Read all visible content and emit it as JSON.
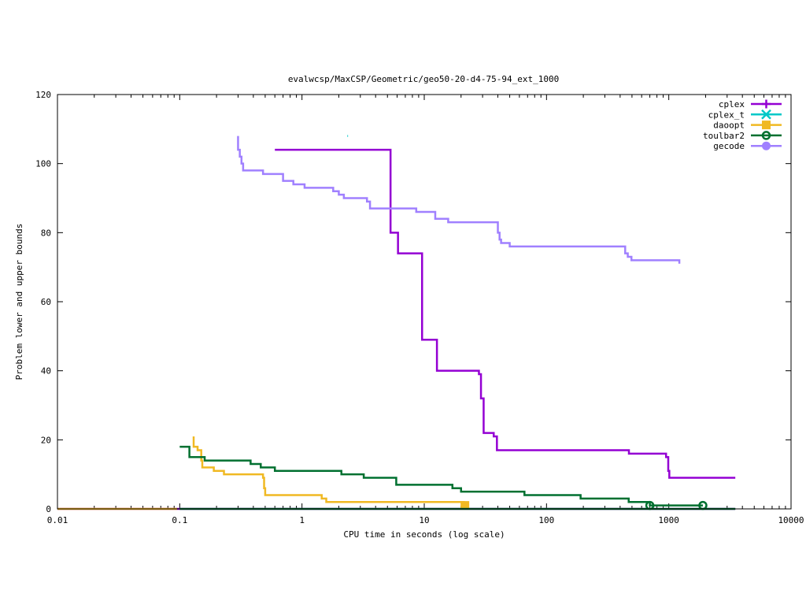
{
  "chart_data": {
    "type": "line",
    "title": "evalwcsp/MaxCSP/Geometric/geo50-20-d4-75-94_ext_1000",
    "xlabel": "CPU time in seconds (log scale)",
    "ylabel": "Problem lower and upper bounds",
    "xscale": "log",
    "xlim": [
      0.01,
      10000
    ],
    "ylim": [
      0,
      120
    ],
    "x_ticks": [
      0.01,
      0.1,
      1,
      10,
      100,
      1000,
      10000
    ],
    "x_tick_labels": [
      "0.01",
      "0.1",
      "1",
      "10",
      "100",
      "1000",
      "10000"
    ],
    "y_ticks": [
      0,
      20,
      40,
      60,
      80,
      100,
      120
    ],
    "y_tick_labels": [
      "0",
      "20",
      "40",
      "60",
      "80",
      "100",
      "120"
    ],
    "legend_position": "top-right",
    "series": [
      {
        "name": "cplex",
        "color": "#9400d3",
        "marker": "plus",
        "lines": [
          [
            [
              0.6,
              104
            ],
            [
              5.3,
              104
            ],
            [
              5.3,
              80
            ],
            [
              6.1,
              80
            ],
            [
              6.1,
              74
            ],
            [
              9.6,
              74
            ],
            [
              9.6,
              49
            ],
            [
              12.7,
              49
            ],
            [
              12.7,
              40
            ],
            [
              28.0,
              40
            ],
            [
              28.0,
              39
            ],
            [
              29.1,
              39
            ],
            [
              29.1,
              32
            ],
            [
              30.6,
              32
            ],
            [
              30.6,
              22
            ],
            [
              37.0,
              22
            ],
            [
              37.0,
              21
            ],
            [
              39.3,
              21
            ],
            [
              39.3,
              17
            ],
            [
              472,
              17
            ],
            [
              472,
              16
            ],
            [
              950,
              16
            ],
            [
              950,
              15
            ],
            [
              990,
              15
            ],
            [
              990,
              11
            ],
            [
              1010,
              11
            ],
            [
              1010,
              9
            ],
            [
              3500,
              9
            ]
          ],
          [
            [
              0.01,
              0
            ],
            [
              3500,
              0
            ]
          ]
        ],
        "markers": []
      },
      {
        "name": "cplex_t",
        "color": "#00c8c8",
        "marker": "x",
        "lines": [
          [
            [
              2.35,
              108
            ],
            [
              2.38,
              108
            ]
          ]
        ],
        "markers": []
      },
      {
        "name": "daoopt",
        "color": "#f0b923",
        "marker": "square",
        "lines": [
          [
            [
              0.13,
              21
            ],
            [
              0.13,
              18
            ],
            [
              0.14,
              18
            ],
            [
              0.14,
              17
            ],
            [
              0.15,
              17
            ],
            [
              0.15,
              14
            ],
            [
              0.153,
              14
            ],
            [
              0.153,
              12
            ],
            [
              0.19,
              12
            ],
            [
              0.19,
              11
            ],
            [
              0.23,
              11
            ],
            [
              0.23,
              10
            ],
            [
              0.48,
              10
            ],
            [
              0.48,
              9
            ],
            [
              0.49,
              9
            ],
            [
              0.49,
              6
            ],
            [
              0.5,
              6
            ],
            [
              0.5,
              4
            ],
            [
              1.45,
              4
            ],
            [
              1.45,
              3
            ],
            [
              1.58,
              3
            ],
            [
              1.58,
              2
            ],
            [
              21.5,
              2
            ]
          ],
          [
            [
              0.01,
              0
            ],
            [
              0.095,
              0
            ]
          ]
        ],
        "markers": [
          [
            21.5,
            1
          ]
        ]
      },
      {
        "name": "toulbar2",
        "color": "#007030",
        "marker": "circle",
        "lines": [
          [
            [
              0.1,
              18
            ],
            [
              0.12,
              18
            ],
            [
              0.12,
              15
            ],
            [
              0.16,
              15
            ],
            [
              0.16,
              14
            ],
            [
              0.38,
              14
            ],
            [
              0.38,
              13
            ],
            [
              0.46,
              13
            ],
            [
              0.46,
              12
            ],
            [
              0.6,
              12
            ],
            [
              0.6,
              11
            ],
            [
              2.1,
              11
            ],
            [
              2.1,
              10
            ],
            [
              3.2,
              10
            ],
            [
              3.2,
              9
            ],
            [
              5.9,
              9
            ],
            [
              5.9,
              7
            ],
            [
              17,
              7
            ],
            [
              17,
              6
            ],
            [
              20,
              6
            ],
            [
              20,
              5
            ],
            [
              66,
              5
            ],
            [
              66,
              4
            ],
            [
              190,
              4
            ],
            [
              190,
              3
            ],
            [
              470,
              3
            ],
            [
              470,
              2
            ],
            [
              700,
              2
            ],
            [
              700,
              1
            ],
            [
              1900,
              1
            ]
          ],
          [
            [
              0.1,
              0
            ],
            [
              3500,
              0
            ]
          ]
        ],
        "markers": [
          [
            700,
            1
          ],
          [
            1900,
            1
          ]
        ]
      },
      {
        "name": "gecode",
        "color": "#a080ff",
        "marker": "circle-filled",
        "lines": [
          [
            [
              0.3,
              108
            ],
            [
              0.3,
              104
            ],
            [
              0.31,
              104
            ],
            [
              0.31,
              102
            ],
            [
              0.32,
              102
            ],
            [
              0.32,
              100
            ],
            [
              0.33,
              100
            ],
            [
              0.33,
              98
            ],
            [
              0.48,
              98
            ],
            [
              0.48,
              97
            ],
            [
              0.7,
              97
            ],
            [
              0.7,
              95
            ],
            [
              0.85,
              95
            ],
            [
              0.85,
              94
            ],
            [
              1.05,
              94
            ],
            [
              1.05,
              93
            ],
            [
              1.8,
              93
            ],
            [
              1.8,
              92
            ],
            [
              2.0,
              92
            ],
            [
              2.0,
              91
            ],
            [
              2.2,
              91
            ],
            [
              2.2,
              90
            ],
            [
              3.4,
              90
            ],
            [
              3.4,
              89
            ],
            [
              3.6,
              89
            ],
            [
              3.6,
              87
            ],
            [
              8.6,
              87
            ],
            [
              8.6,
              86
            ],
            [
              12.3,
              86
            ],
            [
              12.3,
              84
            ],
            [
              15.7,
              84
            ],
            [
              15.7,
              83
            ],
            [
              40,
              83
            ],
            [
              40,
              80
            ],
            [
              41.3,
              80
            ],
            [
              41.3,
              78
            ],
            [
              42.5,
              78
            ],
            [
              42.5,
              77
            ],
            [
              50,
              77
            ],
            [
              50,
              76
            ],
            [
              440,
              76
            ],
            [
              440,
              74
            ],
            [
              462,
              74
            ],
            [
              462,
              73
            ],
            [
              495,
              73
            ],
            [
              495,
              72
            ],
            [
              1220,
              72
            ],
            [
              1220,
              71
            ]
          ]
        ],
        "markers": []
      }
    ]
  }
}
